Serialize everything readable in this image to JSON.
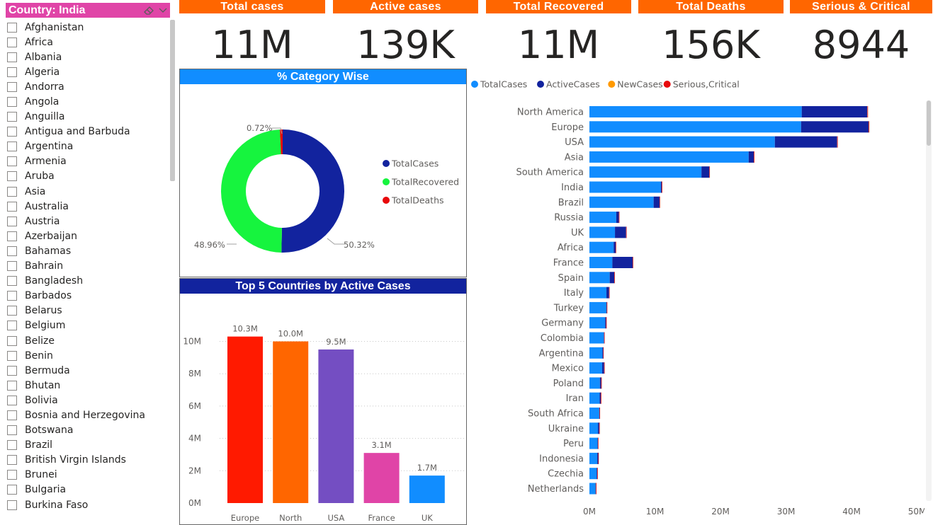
{
  "slicer": {
    "title": "Country: India",
    "items": [
      "Afghanistan",
      "Africa",
      "Albania",
      "Algeria",
      "Andorra",
      "Angola",
      "Anguilla",
      "Antigua and Barbuda",
      "Argentina",
      "Armenia",
      "Aruba",
      "Asia",
      "Australia",
      "Austria",
      "Azerbaijan",
      "Bahamas",
      "Bahrain",
      "Bangladesh",
      "Barbados",
      "Belarus",
      "Belgium",
      "Belize",
      "Benin",
      "Bermuda",
      "Bhutan",
      "Bolivia",
      "Bosnia and Herzegovina",
      "Botswana",
      "Brazil",
      "British Virgin Islands",
      "Brunei",
      "Bulgaria",
      "Burkina Faso"
    ]
  },
  "kpis": [
    {
      "label": "Total cases",
      "value": "11M"
    },
    {
      "label": "Active cases",
      "value": "139K"
    },
    {
      "label": "Total Recovered",
      "value": "11M"
    },
    {
      "label": "Total Deaths",
      "value": "156K"
    },
    {
      "label": "Serious & Critical",
      "value": "8944"
    }
  ],
  "colors": {
    "orange": "#ff6600",
    "pink": "#e044a7",
    "blue_header": "#118dff",
    "navy_header": "#12239e",
    "total_cases": "#118dff",
    "active_cases": "#12239e",
    "new_cases": "#e66c37",
    "serious_critical": "#e8080b",
    "donut_total": "#12239e",
    "donut_recovered": "#16f43e",
    "donut_deaths": "#e8080b"
  },
  "donut": {
    "title": "% Category Wise",
    "label_deaths": "0.72%",
    "label_recovered": "48.96%",
    "label_total": "50.32%"
  },
  "bar_chart": {
    "title": "Top 5 Countries by Active Cases",
    "ytick_labels": [
      "0M",
      "2M",
      "4M",
      "6M",
      "8M",
      "10M"
    ],
    "value_labels": [
      "10.3M",
      "10.0M",
      "9.5M",
      "3.1M",
      "1.7M"
    ]
  },
  "hbar": {
    "xtick_labels": [
      "0M",
      "10M",
      "20M",
      "30M",
      "40M",
      "50M"
    ]
  },
  "chart_data": [
    {
      "type": "pie",
      "title": "% Category Wise",
      "categories": [
        "TotalCases",
        "TotalRecovered",
        "TotalDeaths"
      ],
      "values": [
        50.32,
        48.96,
        0.72
      ],
      "colors": [
        "#12239e",
        "#16f43e",
        "#e8080b"
      ],
      "legend": "right"
    },
    {
      "type": "bar",
      "title": "Top 5 Countries by Active Cases",
      "categories": [
        "Europe",
        "North America",
        "USA",
        "France",
        "UK"
      ],
      "values": [
        10.3,
        10.0,
        9.5,
        3.1,
        1.7
      ],
      "colors": [
        "#ff1a00",
        "#ff6600",
        "#744ec2",
        "#e044a7",
        "#118dff"
      ],
      "ylim": [
        0,
        11
      ],
      "unit": "M",
      "grid": true
    },
    {
      "type": "bar",
      "orientation": "horizontal",
      "stacked": true,
      "categories": [
        "North America",
        "Europe",
        "USA",
        "Asia",
        "South America",
        "India",
        "Brazil",
        "Russia",
        "UK",
        "Africa",
        "France",
        "Spain",
        "Italy",
        "Turkey",
        "Germany",
        "Colombia",
        "Argentina",
        "Mexico",
        "Poland",
        "Iran",
        "South Africa",
        "Ukraine",
        "Peru",
        "Indonesia",
        "Czechia",
        "Netherlands"
      ],
      "series": [
        {
          "name": "TotalCases",
          "values": [
            32.4,
            32.3,
            28.3,
            24.3,
            17.1,
            10.9,
            9.8,
            4.1,
            3.9,
            3.7,
            3.5,
            3.1,
            2.6,
            2.6,
            2.4,
            2.2,
            2.0,
            1.95,
            1.6,
            1.55,
            1.5,
            1.3,
            1.25,
            1.2,
            1.1,
            0.95
          ]
        },
        {
          "name": "ActiveCases",
          "values": [
            10.0,
            10.3,
            9.5,
            0.8,
            1.2,
            0.15,
            0.9,
            0.4,
            1.7,
            0.3,
            3.1,
            0.7,
            0.4,
            0.05,
            0.15,
            0.05,
            0.1,
            0.3,
            0.2,
            0.2,
            0.05,
            0.2,
            0.05,
            0.15,
            0.1,
            0.05
          ]
        },
        {
          "name": "NewCases",
          "values": [
            0.05,
            0.05,
            0.03,
            0.02,
            0.02,
            0.01,
            0.01,
            0.01,
            0.01,
            0.01,
            0.01,
            0.01,
            0.01,
            0.01,
            0.01,
            0.01,
            0.01,
            0.01,
            0.01,
            0.01,
            0.01,
            0.01,
            0.01,
            0.01,
            0.01,
            0.01
          ]
        },
        {
          "name": "Serious,Critical",
          "values": [
            0.03,
            0.03,
            0.02,
            0.02,
            0.01,
            0.01,
            0.01,
            0.01,
            0.01,
            0.01,
            0.01,
            0.01,
            0.01,
            0.01,
            0.01,
            0.01,
            0.01,
            0.01,
            0.01,
            0.01,
            0.01,
            0.01,
            0.01,
            0.01,
            0.01,
            0.01
          ]
        }
      ],
      "xlim": [
        0,
        50
      ],
      "unit": "M",
      "legend": "top-left"
    }
  ]
}
